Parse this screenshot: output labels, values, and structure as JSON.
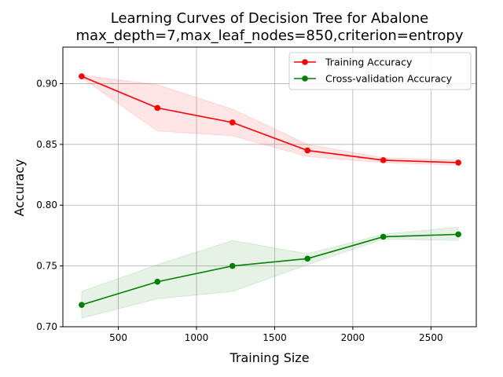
{
  "chart_data": {
    "type": "line",
    "title": "Learning Curves of Decision Tree for Abalone",
    "subtitle": "max_depth=7,max_leaf_nodes=850,criterion=entropy",
    "xlabel": "Training Size",
    "ylabel": "Accuracy",
    "xlim": [
      145,
      2790
    ],
    "ylim": [
      0.7,
      0.93
    ],
    "xticks": [
      500,
      1000,
      1500,
      2000,
      2500
    ],
    "yticks": [
      0.7,
      0.75,
      0.8,
      0.85,
      0.9
    ],
    "ytick_labels": [
      "0.70",
      "0.75",
      "0.80",
      "0.85",
      "0.90"
    ],
    "grid": true,
    "legend_position": "top-right",
    "x": [
      265,
      750,
      1230,
      1710,
      2195,
      2675
    ],
    "series": [
      {
        "name": "Training Accuracy",
        "color": "#ff0000",
        "fill_color": "#ff0000",
        "values": [
          0.906,
          0.88,
          0.868,
          0.845,
          0.837,
          0.835
        ],
        "upper": [
          0.907,
          0.899,
          0.879,
          0.85,
          0.839,
          0.837
        ],
        "lower": [
          0.905,
          0.861,
          0.857,
          0.84,
          0.835,
          0.833
        ]
      },
      {
        "name": "Cross-validation Accuracy",
        "color": "#008000",
        "fill_color": "#008000",
        "values": [
          0.718,
          0.737,
          0.75,
          0.756,
          0.774,
          0.776
        ],
        "upper": [
          0.729,
          0.751,
          0.771,
          0.76,
          0.776,
          0.782
        ],
        "lower": [
          0.707,
          0.723,
          0.729,
          0.751,
          0.772,
          0.771
        ]
      }
    ]
  }
}
